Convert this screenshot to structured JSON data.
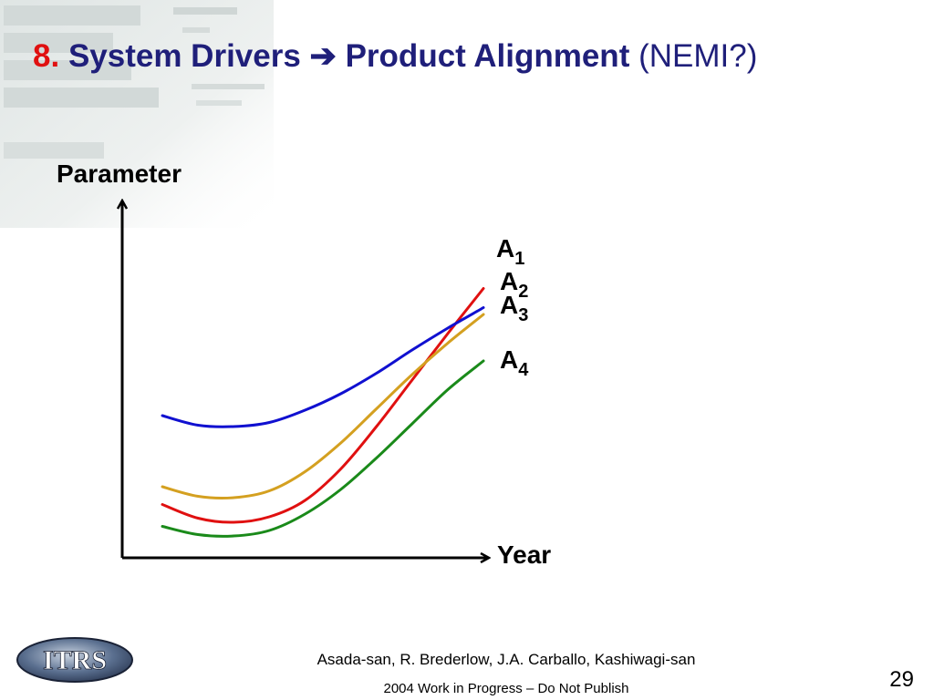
{
  "slide": {
    "title_number": "8.",
    "title_main": "System Drivers ➔ Product Alignment",
    "title_suffix": "(NEMI?)"
  },
  "chart_data": {
    "type": "line",
    "ylabel": "Parameter",
    "xlabel": "Year",
    "grid": false,
    "legend": "inline labels at line ends",
    "xlim": [
      0,
      10
    ],
    "ylim": [
      0,
      10
    ],
    "series": [
      {
        "name": "A",
        "subscript": "1",
        "color": "#e01010",
        "x": [
          0,
          1,
          2,
          3,
          4,
          5,
          6,
          7,
          8,
          9
        ],
        "y": [
          1.55,
          1.05,
          0.9,
          1.1,
          1.7,
          2.85,
          4.4,
          6.1,
          7.8,
          9.45
        ]
      },
      {
        "name": "A",
        "subscript": "2",
        "color": "#1010d0",
        "x": [
          0,
          1,
          2,
          3,
          4,
          5,
          6,
          7,
          8,
          9
        ],
        "y": [
          4.8,
          4.45,
          4.4,
          4.55,
          5.0,
          5.6,
          6.35,
          7.2,
          8.0,
          8.75
        ]
      },
      {
        "name": "A",
        "subscript": "3",
        "color": "#d4a020",
        "x": [
          0,
          1,
          2,
          3,
          4,
          5,
          6,
          7,
          8,
          9
        ],
        "y": [
          2.2,
          1.85,
          1.8,
          2.05,
          2.75,
          3.8,
          5.05,
          6.3,
          7.45,
          8.5
        ]
      },
      {
        "name": "A",
        "subscript": "4",
        "color": "#1a8a1a",
        "x": [
          0,
          1,
          2,
          3,
          4,
          5,
          6,
          7,
          8,
          9
        ],
        "y": [
          0.75,
          0.45,
          0.4,
          0.6,
          1.2,
          2.1,
          3.25,
          4.5,
          5.75,
          6.8
        ]
      }
    ]
  },
  "footer": {
    "authors": "Asada-san, R. Brederlow, J.A. Carballo, Kashiwagi-san",
    "note": "2004 Work in Progress – Do Not Publish",
    "page_number": "29",
    "logo_text": "ITRS"
  }
}
